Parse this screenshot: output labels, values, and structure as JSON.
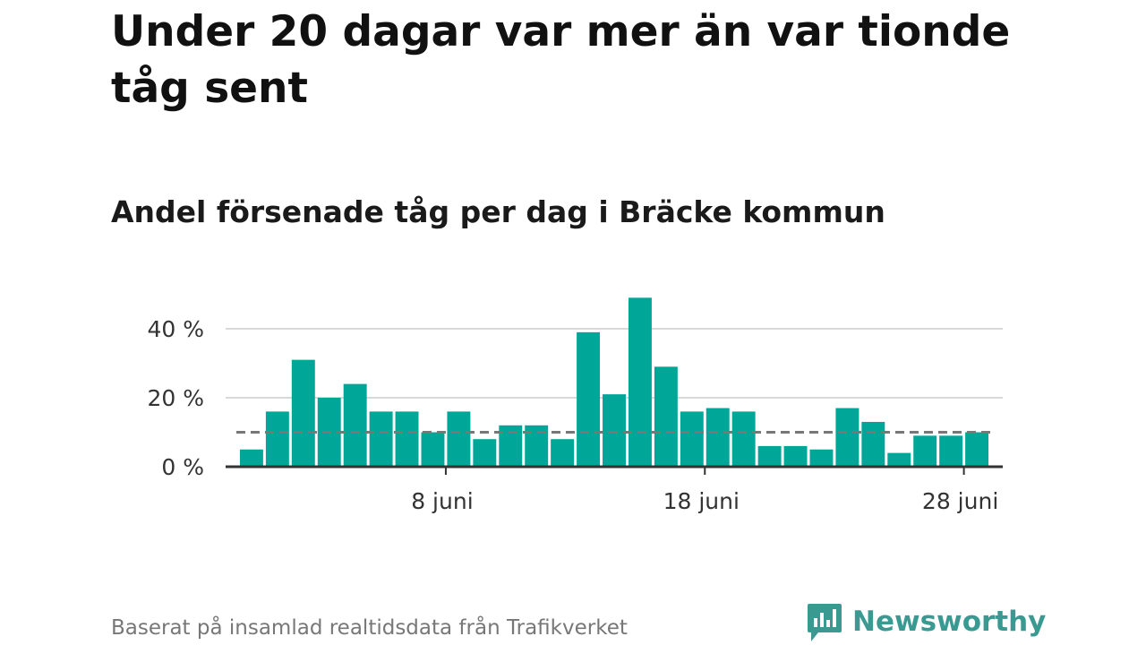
{
  "headline": "Under 20 dagar var mer än var tionde tåg sent",
  "chart_data": {
    "type": "bar",
    "title": "Andel försenade tåg per dag i Bräcke kommun",
    "xlabel": "",
    "ylabel": "",
    "x": [
      1,
      2,
      3,
      4,
      5,
      6,
      7,
      8,
      9,
      10,
      11,
      12,
      13,
      14,
      15,
      16,
      17,
      18,
      19,
      20,
      21,
      22,
      23,
      24,
      25,
      26,
      27,
      28,
      29
    ],
    "values": [
      5,
      16,
      31,
      20,
      24,
      16,
      16,
      10,
      16,
      8,
      12,
      12,
      8,
      39,
      21,
      49,
      29,
      16,
      17,
      16,
      6,
      6,
      5,
      17,
      13,
      4,
      9,
      9,
      10
    ],
    "x_ticks": [
      {
        "x": 8,
        "label": "8 juni"
      },
      {
        "x": 18,
        "label": "18 juni"
      },
      {
        "x": 28,
        "label": "28 juni"
      }
    ],
    "y_ticks": [
      {
        "value": 0,
        "label": "0 %"
      },
      {
        "value": 20,
        "label": "20 %"
      },
      {
        "value": 40,
        "label": "40 %"
      }
    ],
    "ylim": [
      0,
      50
    ],
    "xlim": [
      0,
      30
    ],
    "reference_line": {
      "value": 10,
      "style": "dashed"
    },
    "grid": true,
    "colors": {
      "bar": "#00a698",
      "grid": "#d9d9d9",
      "axis": "#333333",
      "reference": "#777777"
    }
  },
  "footnote": "Baserat på insamlad realtidsdata från Trafikverket",
  "logo": {
    "text": "Newsworthy",
    "icon": "newsworthy-logo-icon",
    "color": "#3a9a91"
  }
}
